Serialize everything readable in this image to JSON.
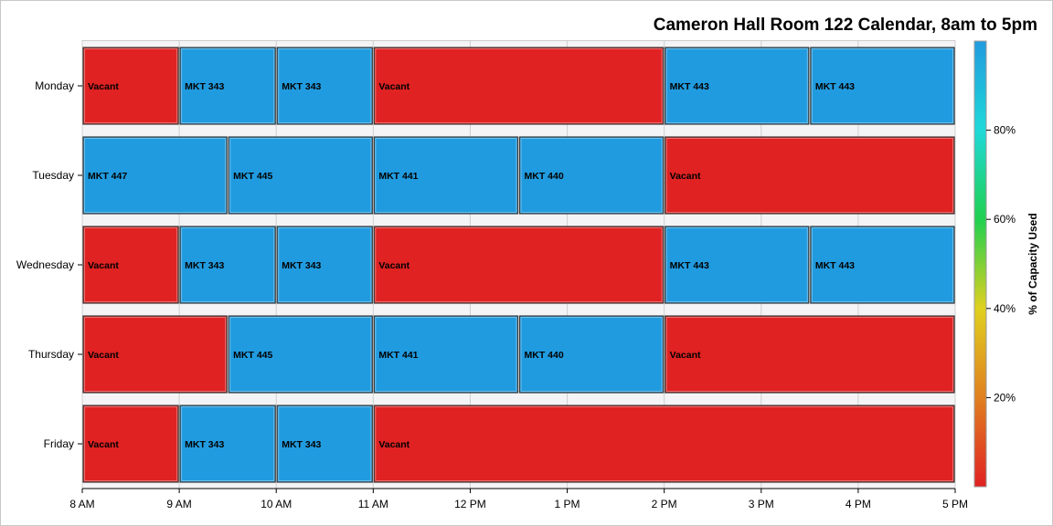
{
  "chart_data": {
    "type": "bar",
    "orientation": "horizontal",
    "style": "timeline",
    "title": "Cameron Hall Room 122 Calendar, 8am to 5pm",
    "xlabel": "",
    "ylabel": "",
    "x_ticks": [
      "8 AM",
      "9 AM",
      "10 AM",
      "11 AM",
      "12 PM",
      "1 PM",
      "2 PM",
      "3 PM",
      "4 PM",
      "5 PM"
    ],
    "xlim": [
      8,
      17
    ],
    "grid": true,
    "categories": [
      "Monday",
      "Tuesday",
      "Wednesday",
      "Thursday",
      "Friday"
    ],
    "rows": [
      {
        "day": "Monday",
        "events": [
          {
            "label": "Vacant",
            "start": 8,
            "end": 9,
            "capacity_pct": 0
          },
          {
            "label": "MKT 343",
            "start": 9,
            "end": 10,
            "capacity_pct": 100
          },
          {
            "label": "MKT 343",
            "start": 10,
            "end": 11,
            "capacity_pct": 100
          },
          {
            "label": "Vacant",
            "start": 11,
            "end": 14,
            "capacity_pct": 0
          },
          {
            "label": "MKT 443",
            "start": 14,
            "end": 15.5,
            "capacity_pct": 100
          },
          {
            "label": "MKT 443",
            "start": 15.5,
            "end": 17,
            "capacity_pct": 100
          }
        ]
      },
      {
        "day": "Tuesday",
        "events": [
          {
            "label": "MKT 447",
            "start": 8,
            "end": 9.5,
            "capacity_pct": 100
          },
          {
            "label": "MKT 445",
            "start": 9.5,
            "end": 11,
            "capacity_pct": 100
          },
          {
            "label": "MKT 441",
            "start": 11,
            "end": 12.5,
            "capacity_pct": 100
          },
          {
            "label": "MKT 440",
            "start": 12.5,
            "end": 14,
            "capacity_pct": 100
          },
          {
            "label": "Vacant",
            "start": 14,
            "end": 17,
            "capacity_pct": 0
          }
        ]
      },
      {
        "day": "Wednesday",
        "events": [
          {
            "label": "Vacant",
            "start": 8,
            "end": 9,
            "capacity_pct": 0
          },
          {
            "label": "MKT 343",
            "start": 9,
            "end": 10,
            "capacity_pct": 100
          },
          {
            "label": "MKT 343",
            "start": 10,
            "end": 11,
            "capacity_pct": 100
          },
          {
            "label": "Vacant",
            "start": 11,
            "end": 14,
            "capacity_pct": 0
          },
          {
            "label": "MKT 443",
            "start": 14,
            "end": 15.5,
            "capacity_pct": 100
          },
          {
            "label": "MKT 443",
            "start": 15.5,
            "end": 17,
            "capacity_pct": 100
          }
        ]
      },
      {
        "day": "Thursday",
        "events": [
          {
            "label": "Vacant",
            "start": 8,
            "end": 9.5,
            "capacity_pct": 0
          },
          {
            "label": "MKT 445",
            "start": 9.5,
            "end": 11,
            "capacity_pct": 100
          },
          {
            "label": "MKT 441",
            "start": 11,
            "end": 12.5,
            "capacity_pct": 100
          },
          {
            "label": "MKT 440",
            "start": 12.5,
            "end": 14,
            "capacity_pct": 100
          },
          {
            "label": "Vacant",
            "start": 14,
            "end": 17,
            "capacity_pct": 0
          }
        ]
      },
      {
        "day": "Friday",
        "events": [
          {
            "label": "Vacant",
            "start": 8,
            "end": 9,
            "capacity_pct": 0
          },
          {
            "label": "MKT 343",
            "start": 9,
            "end": 10,
            "capacity_pct": 100
          },
          {
            "label": "MKT 343",
            "start": 10,
            "end": 11,
            "capacity_pct": 100
          },
          {
            "label": "Vacant",
            "start": 11,
            "end": 17,
            "capacity_pct": 0
          }
        ]
      }
    ],
    "colors": {
      "vacant": "#e02222",
      "booked": "#219bdf"
    },
    "colorbar": {
      "title": "% of Capacity Used",
      "ticks": [
        {
          "value": 20,
          "label": "20%"
        },
        {
          "value": 40,
          "label": "40%"
        },
        {
          "value": 60,
          "label": "60%"
        },
        {
          "value": 80,
          "label": "80%"
        }
      ],
      "range": [
        0,
        100
      ],
      "gradient": [
        "#e02222",
        "#e08020",
        "#e0d020",
        "#20d050",
        "#20d8d8",
        "#219bdf"
      ],
      "placement": "right"
    }
  }
}
